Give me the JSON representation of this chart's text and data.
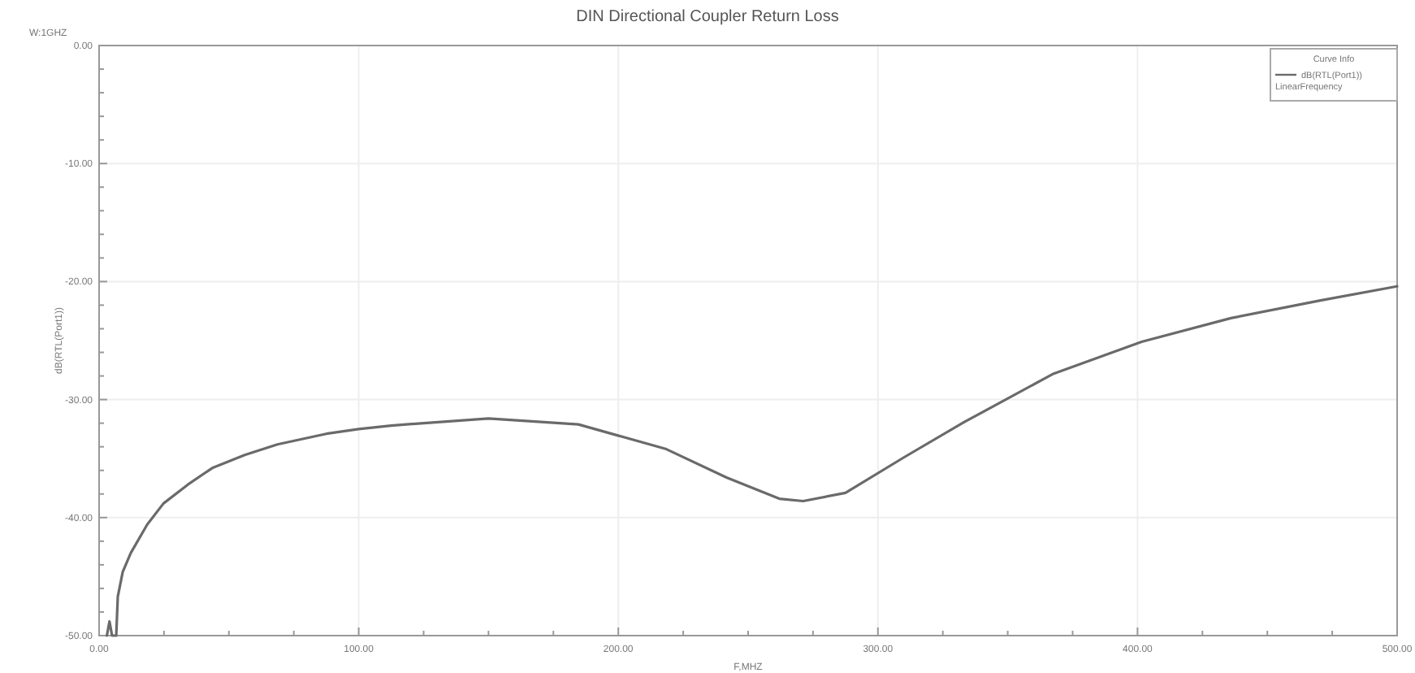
{
  "chart_data": {
    "type": "line",
    "title": "DIN Directional Coupler Return Loss",
    "xlabel": "F,MHZ",
    "ylabel": "dB(RTL(Port1))",
    "legend_title": "Curve Info",
    "annotations": [
      "W:1GHZ",
      "LinearFrequency"
    ],
    "xlim": [
      0,
      500
    ],
    "xticks": [
      {
        "value": 0,
        "label": "0.00"
      },
      {
        "value": 25,
        "label": null
      },
      {
        "value": 50,
        "label": null
      },
      {
        "value": 75,
        "label": null
      },
      {
        "value": 100,
        "label": "100.00"
      },
      {
        "value": 125,
        "label": null
      },
      {
        "value": 150,
        "label": null
      },
      {
        "value": 175,
        "label": null
      },
      {
        "value": 200,
        "label": "200.00"
      },
      {
        "value": 225,
        "label": null
      },
      {
        "value": 250,
        "label": null
      },
      {
        "value": 275,
        "label": null
      },
      {
        "value": 300,
        "label": "300.00"
      },
      {
        "value": 325,
        "label": null
      },
      {
        "value": 350,
        "label": null
      },
      {
        "value": 375,
        "label": null
      },
      {
        "value": 400,
        "label": "400.00"
      },
      {
        "value": 425,
        "label": null
      },
      {
        "value": 450,
        "label": null
      },
      {
        "value": 475,
        "label": null
      },
      {
        "value": 500,
        "label": "500.00"
      }
    ],
    "ylim": [
      -50,
      0
    ],
    "yticks": [
      {
        "value": -50,
        "label": "-50.00"
      },
      {
        "value": -48,
        "label": null
      },
      {
        "value": -46,
        "label": null
      },
      {
        "value": -44,
        "label": null
      },
      {
        "value": -42,
        "label": null
      },
      {
        "value": -40,
        "label": "-40.00"
      },
      {
        "value": -38,
        "label": null
      },
      {
        "value": -36,
        "label": null
      },
      {
        "value": -34,
        "label": null
      },
      {
        "value": -32,
        "label": null
      },
      {
        "value": -30,
        "label": "-30.00"
      },
      {
        "value": -28,
        "label": null
      },
      {
        "value": -26,
        "label": null
      },
      {
        "value": -24,
        "label": null
      },
      {
        "value": -22,
        "label": null
      },
      {
        "value": -20,
        "label": "-20.00"
      },
      {
        "value": -18,
        "label": null
      },
      {
        "value": -16,
        "label": null
      },
      {
        "value": -14,
        "label": null
      },
      {
        "value": -12,
        "label": null
      },
      {
        "value": -10,
        "label": "-10.00"
      },
      {
        "value": -8,
        "label": null
      },
      {
        "value": -6,
        "label": null
      },
      {
        "value": -4,
        "label": null
      },
      {
        "value": -2,
        "label": null
      },
      {
        "value": 0,
        "label": "0.00"
      }
    ],
    "grid": true,
    "legend": "top right",
    "line_style": "solid",
    "series": [
      {
        "name": "dB(RTL(Port1))",
        "color": "#6a6a6a",
        "x": [
          3,
          4,
          5,
          6.6,
          7.2,
          9.1,
          12.2,
          18.5,
          24.8,
          34.2,
          43.6,
          56.1,
          68.7,
          87.5,
          100,
          112.5,
          150,
          184.6,
          218.5,
          241.7,
          262,
          271.2,
          287.5,
          310,
          333.3,
          367.7,
          401.6,
          436,
          470.5,
          500
        ],
        "values": [
          -50,
          -48.8,
          -50,
          -50,
          -46.7,
          -44.6,
          -43,
          -40.6,
          -38.8,
          -37.2,
          -35.8,
          -34.7,
          -33.8,
          -32.9,
          -32.5,
          -32.2,
          -31.6,
          -32.1,
          -34.2,
          -36.6,
          -38.4,
          -38.6,
          -37.9,
          -34.9,
          -31.9,
          -27.8,
          -25.1,
          -23.1,
          -21.6,
          -20.4
        ]
      }
    ]
  }
}
